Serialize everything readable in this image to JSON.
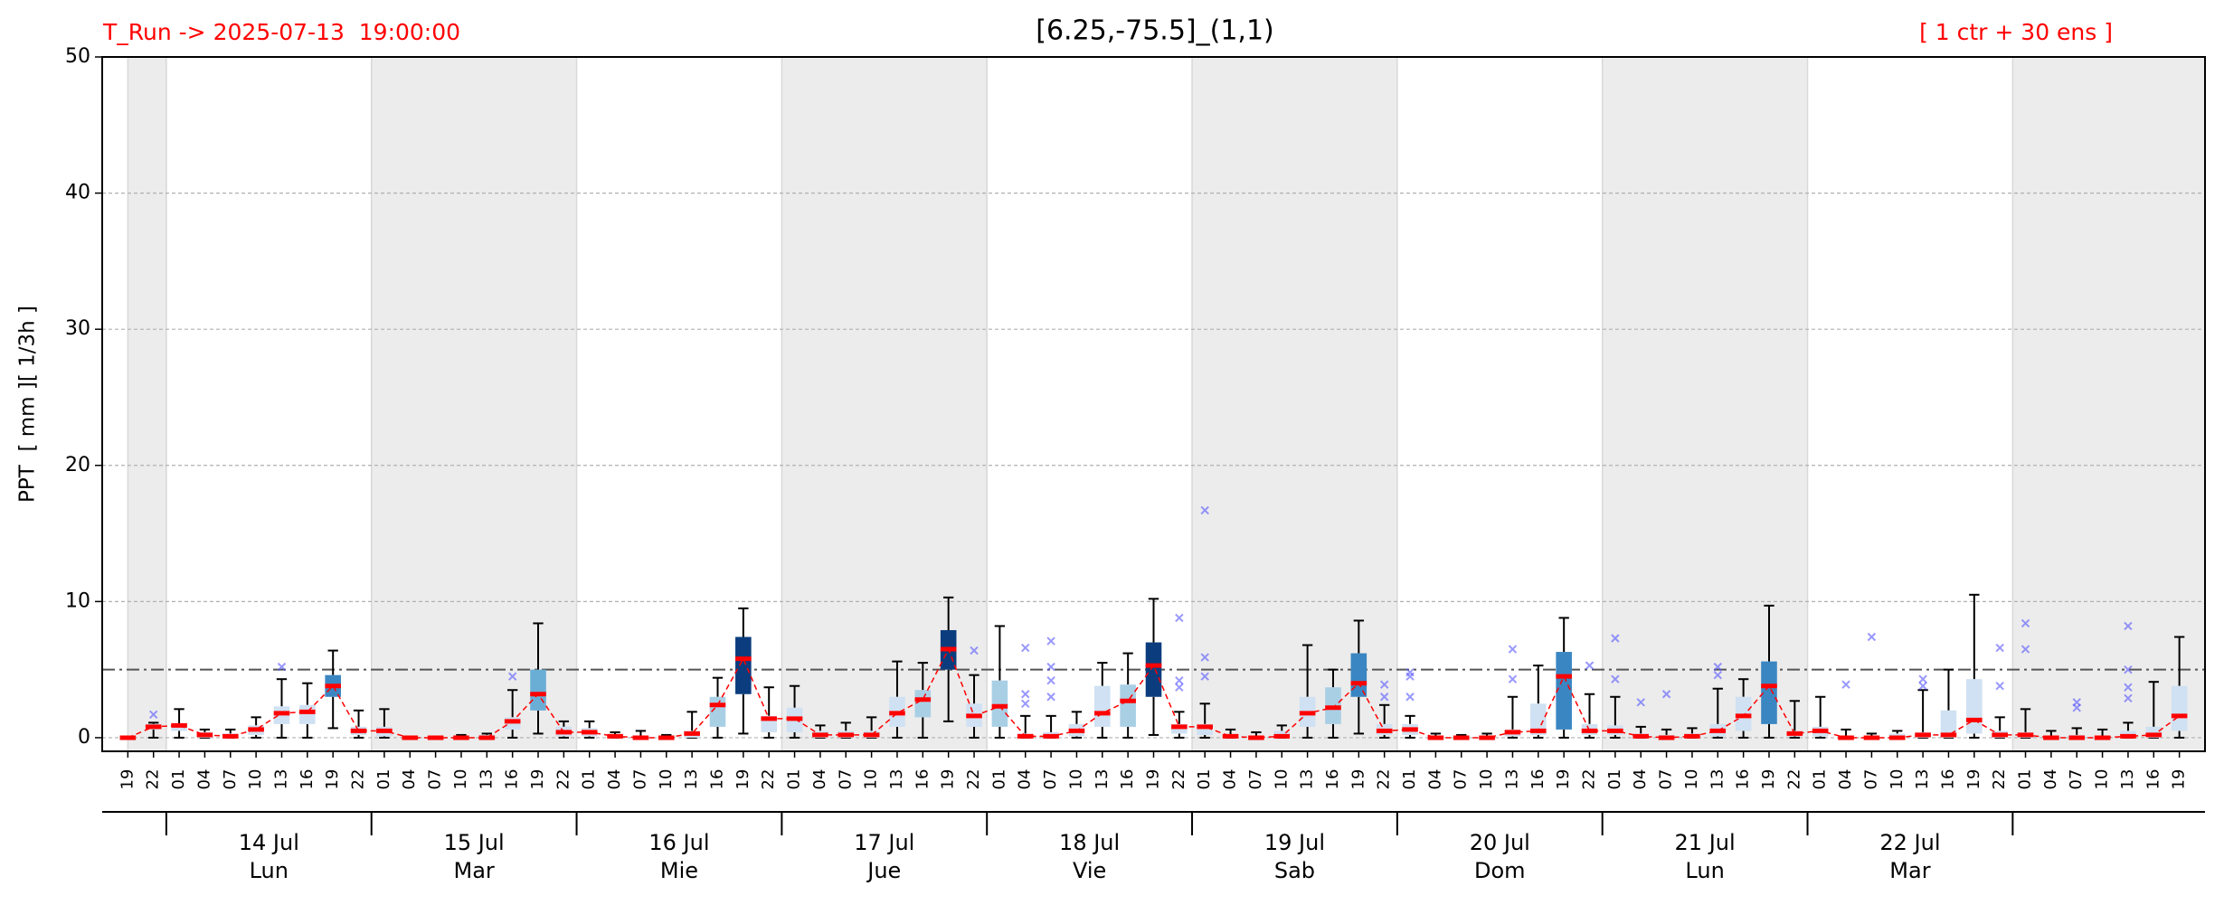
{
  "chart_data": {
    "type": "box",
    "title": "[6.25,-75.5]_(1,1)",
    "subtitle_left": "T_Run -> 2025-07-13  19:00:00",
    "subtitle_right": "[ 1 ctr + 30 ens ]",
    "subtitle_color": "#ff0000",
    "ylabel": "PPT  [ mm ][ 1/3h ]",
    "categories": [
      "19",
      "22",
      "01",
      "04",
      "07",
      "10",
      "13",
      "16",
      "19",
      "22",
      "01",
      "04",
      "07",
      "10",
      "13",
      "16",
      "19",
      "22",
      "01",
      "04",
      "07",
      "10",
      "13",
      "16",
      "19",
      "22",
      "01",
      "04",
      "07",
      "10",
      "13",
      "16",
      "19",
      "22",
      "01",
      "04",
      "07",
      "10",
      "13",
      "16",
      "19",
      "22",
      "01",
      "04",
      "07",
      "10",
      "13",
      "16",
      "19",
      "22",
      "01",
      "04",
      "07",
      "10",
      "13",
      "16",
      "19",
      "22",
      "01",
      "04",
      "07",
      "10",
      "13",
      "16",
      "19",
      "22",
      "01",
      "04",
      "07",
      "10",
      "13",
      "16",
      "19",
      "22",
      "01",
      "04",
      "07",
      "10",
      "13",
      "16",
      "19"
    ],
    "day_labels": [
      null,
      "14 Jul",
      "15 Jul",
      "16 Jul",
      "17 Jul",
      "18 Jul",
      "19 Jul",
      "20 Jul",
      "21 Jul",
      "22 Jul",
      null
    ],
    "weekday_labels": [
      null,
      "Lun",
      "Mar",
      "Mie",
      "Jue",
      "Vie",
      "Sab",
      "Dom",
      "Lun",
      "Mar",
      null
    ],
    "median": [
      0,
      0.8,
      0.9,
      0.2,
      0.1,
      0.6,
      1.8,
      1.9,
      3.8,
      0.5,
      0.5,
      0,
      0,
      0,
      0,
      1.2,
      3.2,
      0.4,
      0.4,
      0.1,
      0,
      0,
      0.3,
      2.4,
      5.8,
      1.4,
      1.4,
      0.2,
      0.2,
      0.2,
      1.8,
      2.8,
      6.5,
      1.6,
      2.3,
      0.1,
      0.1,
      0.5,
      1.8,
      2.7,
      5.3,
      0.8,
      0.8,
      0.1,
      0,
      0.1,
      1.8,
      2.2,
      4.0,
      0.5,
      0.6,
      0,
      0,
      0,
      0.4,
      0.5,
      4.5,
      0.5,
      0.5,
      0.1,
      0,
      0.1,
      0.5,
      1.6,
      3.8,
      0.3,
      0.5,
      0,
      0,
      0,
      0.2,
      0.2,
      1.3,
      0.2,
      0.2,
      0,
      0,
      0,
      0.1,
      0.2,
      1.6
    ],
    "q1": [
      0,
      0.6,
      0.5,
      0,
      0,
      0.2,
      1.0,
      1.0,
      3.0,
      0.2,
      0.1,
      0,
      0,
      0,
      0,
      0.6,
      2.0,
      0.1,
      0.1,
      0,
      0,
      0,
      0,
      0.8,
      3.2,
      0.4,
      0.4,
      0,
      0,
      0,
      0.8,
      1.5,
      5.0,
      0.8,
      0.8,
      0,
      0,
      0.1,
      0.8,
      0.8,
      3.0,
      0.3,
      0.2,
      0,
      0,
      0,
      0.8,
      1.0,
      3.0,
      0.2,
      0.2,
      0,
      0,
      0,
      0.1,
      0.2,
      0.6,
      0.2,
      0.2,
      0,
      0,
      0,
      0.1,
      0.5,
      1.0,
      0.1,
      0.1,
      0,
      0,
      0,
      0,
      0,
      0.3,
      0,
      0,
      0,
      0,
      0,
      0,
      0,
      0.5
    ],
    "q3": [
      0,
      1.0,
      1.0,
      0.4,
      0.3,
      0.9,
      2.3,
      2.4,
      4.6,
      0.8,
      0.8,
      0,
      0,
      0.1,
      0.2,
      1.5,
      5.0,
      0.8,
      0.7,
      0.2,
      0.1,
      0.1,
      0.5,
      3.0,
      7.4,
      1.6,
      2.2,
      0.5,
      0.5,
      0.5,
      3.0,
      3.5,
      7.9,
      2.5,
      4.2,
      0.3,
      0.4,
      1.0,
      3.8,
      3.9,
      7.0,
      1.0,
      1.0,
      0.2,
      0.1,
      0.5,
      3.0,
      3.7,
      6.2,
      1.0,
      1.0,
      0.1,
      0.1,
      0.1,
      0.6,
      2.5,
      6.3,
      1.0,
      0.9,
      0.3,
      0.2,
      0.3,
      1.0,
      3.0,
      5.6,
      0.5,
      0.8,
      0.1,
      0.1,
      0.3,
      0.4,
      2.0,
      4.3,
      0.5,
      0.4,
      0.1,
      0.2,
      0.1,
      0.5,
      0.8,
      3.8
    ],
    "whishi": [
      0,
      1.1,
      2.1,
      0.6,
      0.6,
      1.5,
      4.3,
      4.0,
      6.4,
      2.0,
      2.1,
      0,
      0,
      0.2,
      0.3,
      3.5,
      8.4,
      1.2,
      1.2,
      0.4,
      0.5,
      0.2,
      1.9,
      4.4,
      9.5,
      3.7,
      3.8,
      0.9,
      1.1,
      1.5,
      5.6,
      5.5,
      10.3,
      4.6,
      8.2,
      1.6,
      1.6,
      1.9,
      5.5,
      6.2,
      10.2,
      1.9,
      2.5,
      0.6,
      0.4,
      0.9,
      6.8,
      5.0,
      8.6,
      2.4,
      1.6,
      0.3,
      0.2,
      0.3,
      3.0,
      5.3,
      8.8,
      3.2,
      3.0,
      0.8,
      0.6,
      0.7,
      3.6,
      4.3,
      9.7,
      2.7,
      3.0,
      0.6,
      0.3,
      0.5,
      3.5,
      5.0,
      10.5,
      1.5,
      2.1,
      0.5,
      0.7,
      0.6,
      1.1,
      4.1,
      7.4
    ],
    "whislo": [
      0,
      0,
      0,
      0,
      0,
      0,
      0,
      0,
      0.7,
      0,
      0,
      0,
      0,
      0,
      0,
      0,
      0.3,
      0,
      0,
      0,
      0,
      0,
      0,
      0,
      0.3,
      0,
      0,
      0,
      0,
      0,
      0,
      0,
      1.2,
      0,
      0,
      0,
      0,
      0,
      0,
      0,
      0.2,
      0,
      0,
      0,
      0,
      0,
      0,
      0,
      0.3,
      0,
      0,
      0,
      0,
      0,
      0,
      0,
      0,
      0,
      0,
      0,
      0,
      0,
      0,
      0,
      0,
      0,
      0,
      0,
      0,
      0,
      0,
      0,
      0,
      0,
      0,
      0,
      0,
      0,
      0,
      0,
      0
    ],
    "outliers": [
      [],
      [
        1.7
      ],
      [],
      [],
      [],
      [],
      [
        5.2
      ],
      [],
      [],
      [],
      [],
      [],
      [],
      [],
      [],
      [
        4.5
      ],
      [],
      [],
      [],
      [],
      [],
      [],
      [],
      [],
      [],
      [],
      [],
      [],
      [],
      [],
      [],
      [],
      [],
      [
        6.4
      ],
      [],
      [
        6.6,
        3.2,
        2.5
      ],
      [
        7.1,
        5.2,
        4.2,
        3.0
      ],
      [],
      [],
      [],
      [],
      [
        8.8,
        4.2,
        3.7
      ],
      [
        16.7,
        5.9,
        4.5
      ],
      [],
      [],
      [],
      [],
      [],
      [],
      [
        3.9,
        3.0
      ],
      [
        4.8,
        4.5,
        3.0
      ],
      [],
      [],
      [],
      [
        6.5,
        4.3
      ],
      [],
      [],
      [
        5.3
      ],
      [
        7.3,
        4.3
      ],
      [
        2.6
      ],
      [
        3.2
      ],
      [],
      [
        5.2,
        4.6
      ],
      [],
      [],
      [],
      [],
      [
        3.9
      ],
      [
        7.4
      ],
      [],
      [
        4.3,
        3.8
      ],
      [],
      [],
      [
        6.6,
        3.8
      ],
      [
        8.4,
        6.5
      ],
      [],
      [
        2.6,
        2.2
      ],
      [],
      [
        8.2,
        5.0,
        3.7,
        2.9
      ],
      [],
      []
    ],
    "ylim": [
      -1,
      50
    ],
    "yticks": [
      0,
      10,
      20,
      30,
      40,
      50
    ],
    "grid": true,
    "hline": 5,
    "median_color": "#ff0000",
    "outlier_color": "#5555ff",
    "shading_color": "#ececec",
    "box_colors": {
      "thresholds": [
        5,
        3.5,
        3,
        2
      ],
      "colors": [
        "#0b3d7e",
        "#3a86c2",
        "#6aaed6",
        "#a9cfe5",
        "#cfe1f2"
      ]
    }
  }
}
